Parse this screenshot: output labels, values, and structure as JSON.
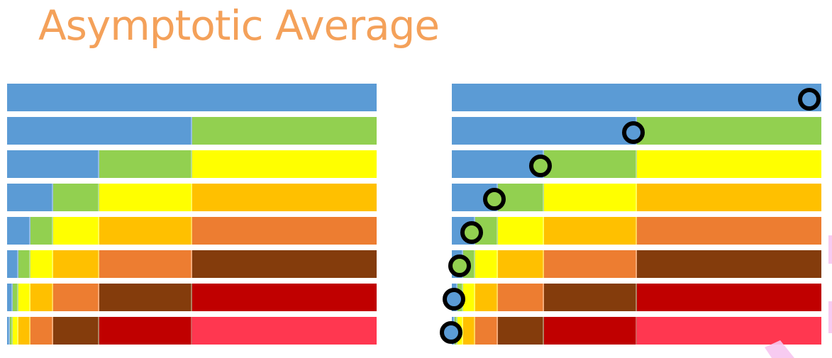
{
  "title": "Asymptotic Average",
  "colors": [
    "#5b9bd5",
    "#92d050",
    "#ffff00",
    "#ffc000",
    "#ed7d31",
    "#843c0c",
    "#c00000",
    "#ff3750"
  ],
  "left_rows": [
    [
      1
    ],
    [
      0.5,
      0.5
    ],
    [
      0.25,
      0.25,
      0.5
    ],
    [
      0.125,
      0.125,
      0.25,
      0.5
    ],
    [
      0.0625,
      0.0625,
      0.125,
      0.25,
      0.5
    ],
    [
      0.03125,
      0.03125,
      0.0625,
      0.125,
      0.25,
      0.5
    ],
    [
      0.015625,
      0.015625,
      0.03125,
      0.0625,
      0.125,
      0.25,
      0.5
    ],
    [
      0.0078125,
      0.0078125,
      0.015625,
      0.03125,
      0.0625,
      0.125,
      0.25,
      0.5
    ]
  ],
  "right_rows": [
    [
      1
    ],
    [
      0.5,
      0.5
    ],
    [
      0.25,
      0.25,
      0.5
    ],
    [
      0.125,
      0.125,
      0.25,
      0.5
    ],
    [
      0.0625,
      0.0625,
      0.125,
      0.25,
      0.5
    ],
    [
      0.03125,
      0.03125,
      0.0625,
      0.125,
      0.25,
      0.5
    ],
    [
      0.015625,
      0.015625,
      0.03125,
      0.0625,
      0.125,
      0.25,
      0.5
    ],
    [
      0.0078125,
      0.0078125,
      0.015625,
      0.03125,
      0.0625,
      0.125,
      0.25,
      0.5
    ]
  ],
  "right_colors": [
    [
      "#5b9bd5"
    ],
    [
      "#5b9bd5",
      "#92d050"
    ],
    [
      "#5b9bd5",
      "#92d050",
      "#ffff00"
    ],
    [
      "#5b9bd5",
      "#92d050",
      "#ffff00",
      "#ffc000"
    ],
    [
      "#5b9bd5",
      "#92d050",
      "#ffff00",
      "#ffc000",
      "#ed7d31"
    ],
    [
      "#5b9bd5",
      "#92d050",
      "#ffff00",
      "#ffc000",
      "#ed7d31",
      "#843c0c"
    ],
    [
      "#5b9bd5",
      "#92d050",
      "#ffff00",
      "#ffc000",
      "#ed7d31",
      "#843c0c",
      "#c00000"
    ],
    [
      "#5b9bd5",
      "#92d050",
      "#ffff00",
      "#ffc000",
      "#ed7d31",
      "#843c0c",
      "#c00000",
      "#ff3750"
    ]
  ],
  "marker_positions": [
    1,
    0.5,
    0.25,
    0.125,
    0.0625,
    0.03125,
    0.015625,
    0.0078125
  ],
  "marker_fill_colors": [
    "#5b9bd5",
    "#5b9bd5",
    "#92d050",
    "#92d050",
    "#92d050",
    "#92d050",
    "#5b9bd5",
    "#5b9bd5"
  ]
}
